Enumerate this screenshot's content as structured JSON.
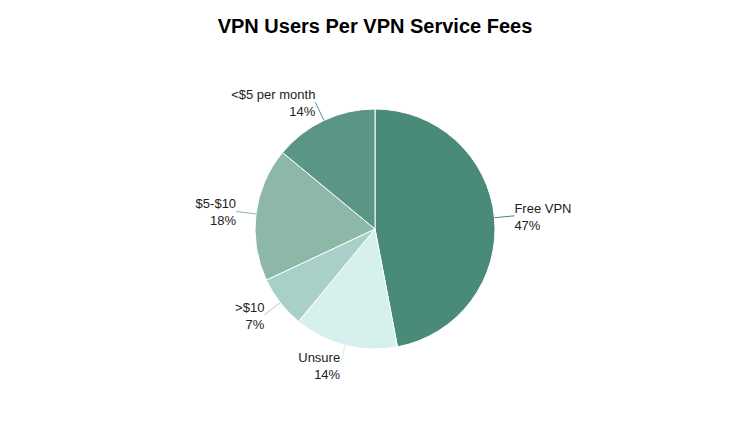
{
  "chart_data": {
    "type": "pie",
    "title": "VPN Users Per VPN Service Fees",
    "categories": [
      "Free VPN",
      "Unsure",
      ">$10",
      "$5-$10",
      "<$5 per month"
    ],
    "values": [
      47,
      14,
      7,
      18,
      14
    ],
    "value_labels": [
      "47%",
      "14%",
      "7%",
      "18%",
      "14%"
    ],
    "colors": [
      "#4a8a78",
      "#d6f0ee",
      "#a8cfc8",
      "#8db8a8",
      "#5a9585"
    ],
    "data_labels": true
  }
}
